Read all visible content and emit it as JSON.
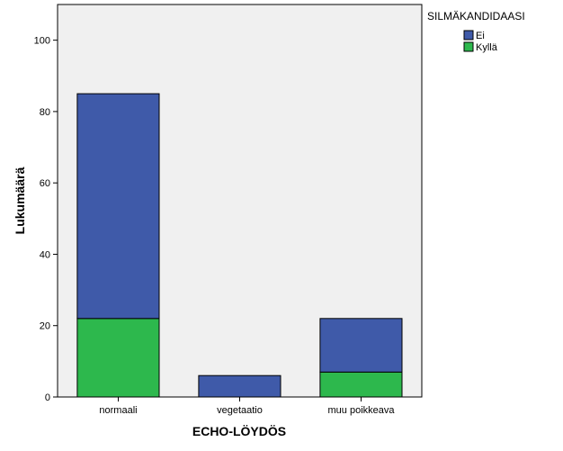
{
  "chart_data": {
    "type": "bar",
    "stacked": true,
    "categories": [
      "normaali",
      "vegetaatio",
      "muu poikkeava"
    ],
    "series": [
      {
        "name": "Kyllä",
        "values": [
          22,
          0,
          7
        ],
        "color": "#2db84d"
      },
      {
        "name": "Ei",
        "values": [
          63,
          6,
          15
        ],
        "color": "#3f5aa9"
      }
    ],
    "xlabel": "ECHO-LÖYDÖS",
    "ylabel": "Lukumäärä",
    "ylim": [
      0,
      110
    ],
    "yticks": [
      0,
      20,
      40,
      60,
      80,
      100
    ],
    "legend": {
      "title": "SILMÄKANDIDAASI",
      "position": "top-right",
      "order": [
        "Ei",
        "Kyllä"
      ]
    },
    "grid": false,
    "plot_background": "#f0f0f0"
  }
}
